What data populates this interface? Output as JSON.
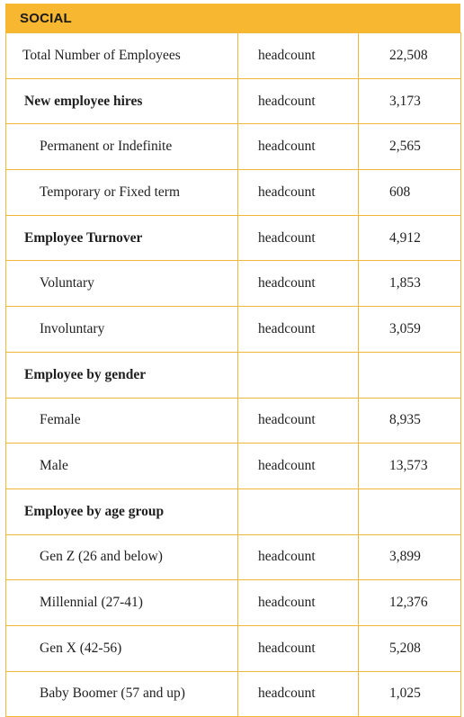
{
  "section_title": "SOCIAL",
  "rows": [
    {
      "label": "Total Number of Employees",
      "unit": "headcount",
      "value": "22,508",
      "style": "normal"
    },
    {
      "label": "New employee hires",
      "unit": "headcount",
      "value": "3,173",
      "style": "bold"
    },
    {
      "label": "Permanent or Indefinite",
      "unit": "headcount",
      "value": "2,565",
      "style": "sub"
    },
    {
      "label": "Temporary or Fixed term",
      "unit": "headcount",
      "value": "608",
      "style": "sub"
    },
    {
      "label": "Employee Turnover",
      "unit": "headcount",
      "value": "4,912",
      "style": "bold"
    },
    {
      "label": "Voluntary",
      "unit": "headcount",
      "value": "1,853",
      "style": "sub"
    },
    {
      "label": "Involuntary",
      "unit": "headcount",
      "value": "3,059",
      "style": "sub"
    },
    {
      "label": "Employee by gender",
      "unit": "",
      "value": "",
      "style": "bold"
    },
    {
      "label": "Female",
      "unit": "headcount",
      "value": "8,935",
      "style": "sub"
    },
    {
      "label": "Male",
      "unit": "headcount",
      "value": "13,573",
      "style": "sub"
    },
    {
      "label": "Employee by age group",
      "unit": "",
      "value": "",
      "style": "bold"
    },
    {
      "label": "Gen Z (26 and below)",
      "unit": "headcount",
      "value": "3,899",
      "style": "sub"
    },
    {
      "label": "Millennial (27-41)",
      "unit": "headcount",
      "value": "12,376",
      "style": "sub"
    },
    {
      "label": "Gen X (42-56)",
      "unit": "headcount",
      "value": "5,208",
      "style": "sub"
    },
    {
      "label": "Baby Boomer (57 and up)",
      "unit": "headcount",
      "value": "1,025",
      "style": "sub"
    }
  ]
}
